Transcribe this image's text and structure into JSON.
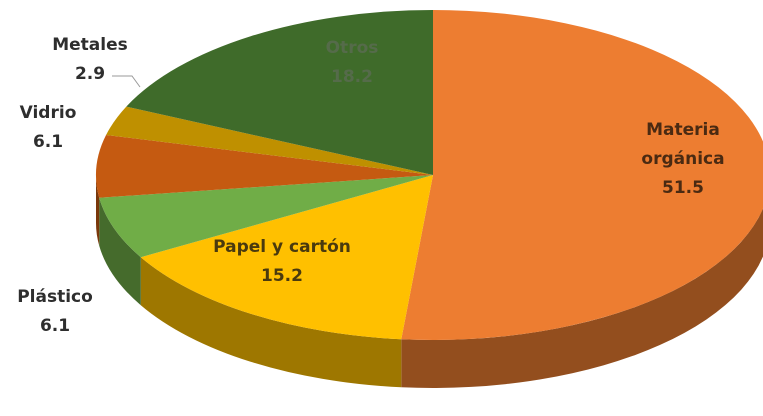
{
  "chart_data": {
    "type": "pie",
    "style": "3d",
    "title": "",
    "slices": [
      {
        "label": "Materia orgánica",
        "value": 51.5,
        "value_label": "51.5",
        "color": "#ED7D31"
      },
      {
        "label": "Papel y cartón",
        "value": 15.2,
        "value_label": "15.2",
        "color": "#FFC000"
      },
      {
        "label": "Plástico",
        "value": 6.1,
        "value_label": "6.1",
        "color": "#70AD47"
      },
      {
        "label": "Vidrio",
        "value": 6.1,
        "value_label": "6.1",
        "color": "#C55A11"
      },
      {
        "label": "Metales",
        "value": 2.9,
        "value_label": "2.9",
        "color": "#BF9000"
      },
      {
        "label": "Otros",
        "value": 18.2,
        "value_label": "18.2",
        "color": "#3F6B2A"
      }
    ]
  }
}
